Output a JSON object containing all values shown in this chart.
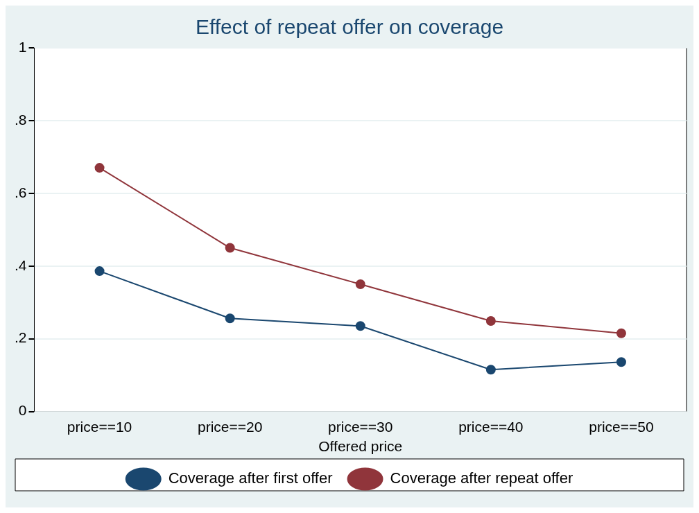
{
  "chart_data": {
    "type": "line",
    "title": "Effect of repeat offer on coverage",
    "xlabel": "Offered price",
    "categories": [
      "price==10",
      "price==20",
      "price==30",
      "price==40",
      "price==50"
    ],
    "series": [
      {
        "name": "Coverage after first offer",
        "color": "#1a476f",
        "values": [
          0.386,
          0.256,
          0.235,
          0.115,
          0.136
        ]
      },
      {
        "name": "Coverage after repeat offer",
        "color": "#90353b",
        "values": [
          0.67,
          0.45,
          0.35,
          0.249,
          0.215
        ]
      }
    ],
    "ylim": [
      0,
      1
    ],
    "yticks": [
      0,
      {
        "value": 0.2,
        "label": ".2"
      },
      {
        "value": 0.4,
        "label": ".4"
      },
      {
        "value": 0.6,
        "label": ".6"
      },
      {
        "value": 0.8,
        "label": ".8"
      },
      1
    ],
    "grid": "y",
    "legend": "bottom",
    "marker": "circle",
    "line_style": "solid"
  }
}
